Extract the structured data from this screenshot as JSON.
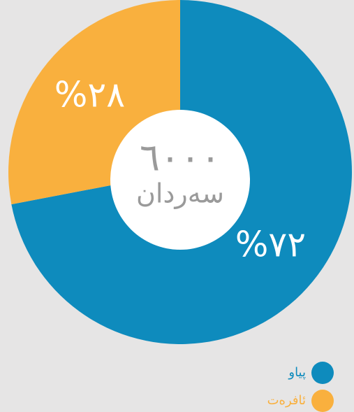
{
  "chart_data": {
    "type": "donut",
    "categories": [
      "پیاو",
      "ئافرەت"
    ],
    "values": [
      72,
      28
    ],
    "value_labels": [
      "%٧٢",
      "%٢٨"
    ],
    "colors": [
      "#0e8bbd",
      "#f9b03e"
    ],
    "center_texts": [
      "٦٠٠٠",
      "سەردان"
    ],
    "legend": "bottom-right"
  }
}
